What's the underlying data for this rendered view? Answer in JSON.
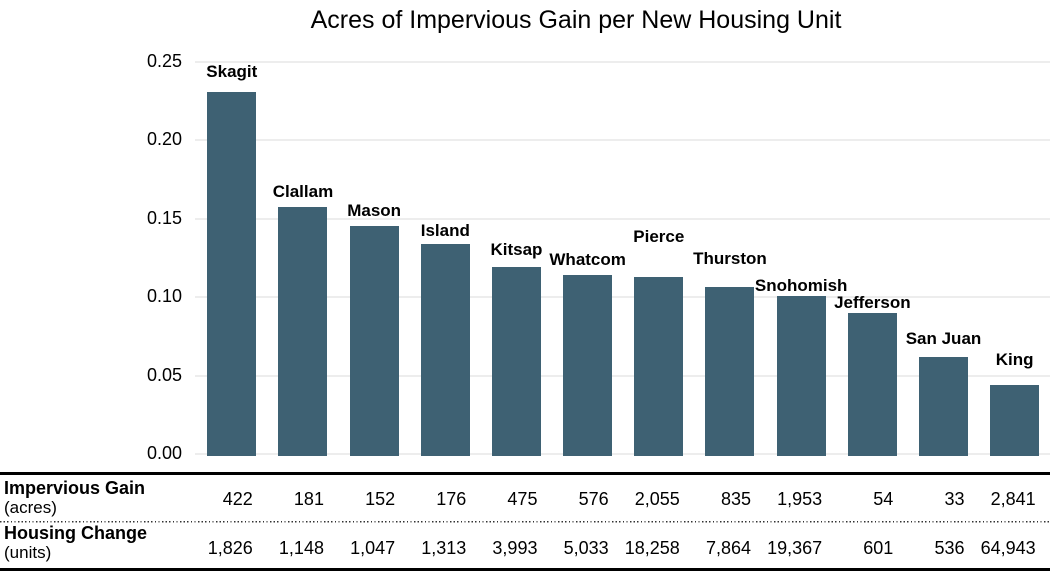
{
  "chart_data": {
    "type": "bar",
    "title": "Acres of Impervious Gain per New Housing Unit",
    "categories": [
      "Skagit",
      "Clallam",
      "Mason",
      "Island",
      "Kitsap",
      "Whatcom",
      "Pierce",
      "Thurston",
      "Snohomish",
      "Jefferson",
      "San Juan",
      "King"
    ],
    "values": [
      0.2311,
      0.1577,
      0.1452,
      0.134,
      0.119,
      0.1144,
      0.1126,
      0.1062,
      0.1008,
      0.0898,
      0.0616,
      0.0437
    ],
    "xlabel": "",
    "ylabel": "",
    "ylim": [
      0,
      0.25
    ],
    "ytick_values": [
      0.0,
      0.05,
      0.1,
      0.15,
      0.2,
      0.25
    ],
    "ytick_labels": [
      "0.00",
      "0.05",
      "0.10",
      "0.15",
      "0.20",
      "0.25"
    ],
    "grid": "horizontal",
    "legend_position": "none",
    "bar_labels_position": "above bars, bold, staggered to avoid overlap",
    "bar_label_gaps": [
      14,
      9,
      9,
      7,
      11,
      9,
      34,
      22,
      4,
      4,
      12,
      19
    ],
    "colors": {
      "bar": "#3e6173",
      "gridline": "#ededed",
      "text": "#000000",
      "table_border": "#000000"
    },
    "table": {
      "rows": [
        {
          "label": "Impervious Gain",
          "sublabel": "(acres)",
          "values": [
            "422",
            "181",
            "152",
            "176",
            "475",
            "576",
            "2,055",
            "835",
            "1,953",
            "54",
            "33",
            "2,841"
          ]
        },
        {
          "label": "Housing Change",
          "sublabel": "(units)",
          "values": [
            "1,826",
            "1,148",
            "1,047",
            "1,313",
            "3,993",
            "5,033",
            "18,258",
            "7,864",
            "19,367",
            "601",
            "536",
            "64,943"
          ]
        }
      ]
    }
  }
}
